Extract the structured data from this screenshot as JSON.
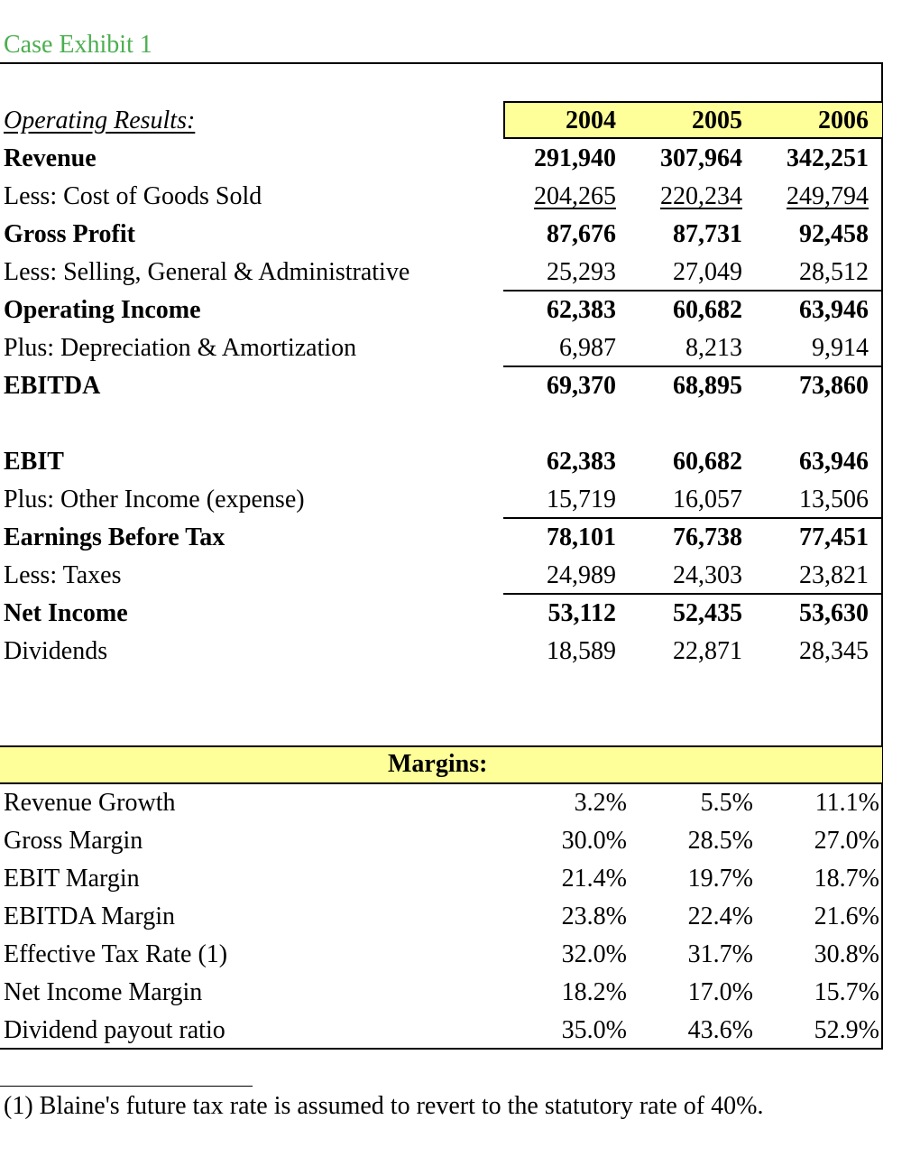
{
  "title": "Case Exhibit 1",
  "operating_header": "Operating Results:",
  "years": [
    "2004",
    "2005",
    "2006"
  ],
  "operating_rows": [
    {
      "label": "Revenue",
      "bold": true,
      "values": [
        "291,940",
        "307,964",
        "342,251"
      ]
    },
    {
      "label": "Less:  Cost of Goods Sold",
      "bold": false,
      "underline": true,
      "values": [
        "204,265",
        "220,234",
        "249,794"
      ]
    },
    {
      "label": "Gross Profit",
      "bold": true,
      "values": [
        "87,676",
        "87,731",
        "92,458"
      ]
    },
    {
      "label": "Less:  Selling, General & Administrative",
      "bold": false,
      "values": [
        "25,293",
        "27,049",
        "28,512"
      ]
    },
    {
      "label": "Operating Income",
      "bold": true,
      "values": [
        "62,383",
        "60,682",
        "63,946"
      ]
    },
    {
      "label": "Plus:  Depreciation & Amortization",
      "bold": false,
      "values": [
        "6,987",
        "8,213",
        "9,914"
      ]
    },
    {
      "label": "EBITDA",
      "bold": true,
      "values": [
        "69,370",
        "68,895",
        "73,860"
      ]
    },
    null,
    {
      "label": "EBIT",
      "bold": true,
      "values": [
        "62,383",
        "60,682",
        "63,946"
      ]
    },
    {
      "label": "Plus:  Other Income (expense)",
      "bold": false,
      "values": [
        "15,719",
        "16,057",
        "13,506"
      ]
    },
    {
      "label": "Earnings Before Tax",
      "bold": true,
      "values": [
        "78,101",
        "76,738",
        "77,451"
      ]
    },
    {
      "label": "Less:  Taxes",
      "bold": false,
      "values": [
        "24,989",
        "24,303",
        "23,821"
      ]
    },
    {
      "label": "Net Income",
      "bold": true,
      "values": [
        "53,112",
        "52,435",
        "53,630"
      ]
    },
    {
      "label": "Dividends",
      "bold": false,
      "values": [
        "18,589",
        "22,871",
        "28,345"
      ]
    }
  ],
  "margins_header": "Margins:",
  "margin_rows": [
    {
      "label": "Revenue Growth",
      "values": [
        "3.2%",
        "5.5%",
        "11.1%"
      ]
    },
    {
      "label": "Gross Margin",
      "values": [
        "30.0%",
        "28.5%",
        "27.0%"
      ]
    },
    {
      "label": "EBIT Margin",
      "values": [
        "21.4%",
        "19.7%",
        "18.7%"
      ]
    },
    {
      "label": "EBITDA Margin",
      "values": [
        "23.8%",
        "22.4%",
        "21.6%"
      ]
    },
    {
      "label": "Effective Tax Rate (1)",
      "values": [
        "32.0%",
        "31.7%",
        "30.8%"
      ]
    },
    {
      "label": "Net Income Margin",
      "values": [
        "18.2%",
        "17.0%",
        "15.7%"
      ]
    },
    {
      "label": "Dividend payout ratio",
      "values": [
        "35.0%",
        "43.6%",
        "52.9%"
      ]
    }
  ],
  "footnote": "(1)  Blaine's future tax rate is assumed to revert to the statutory rate of 40%.",
  "colors": {
    "title": "#4caf50",
    "highlight": "#ffff99"
  }
}
